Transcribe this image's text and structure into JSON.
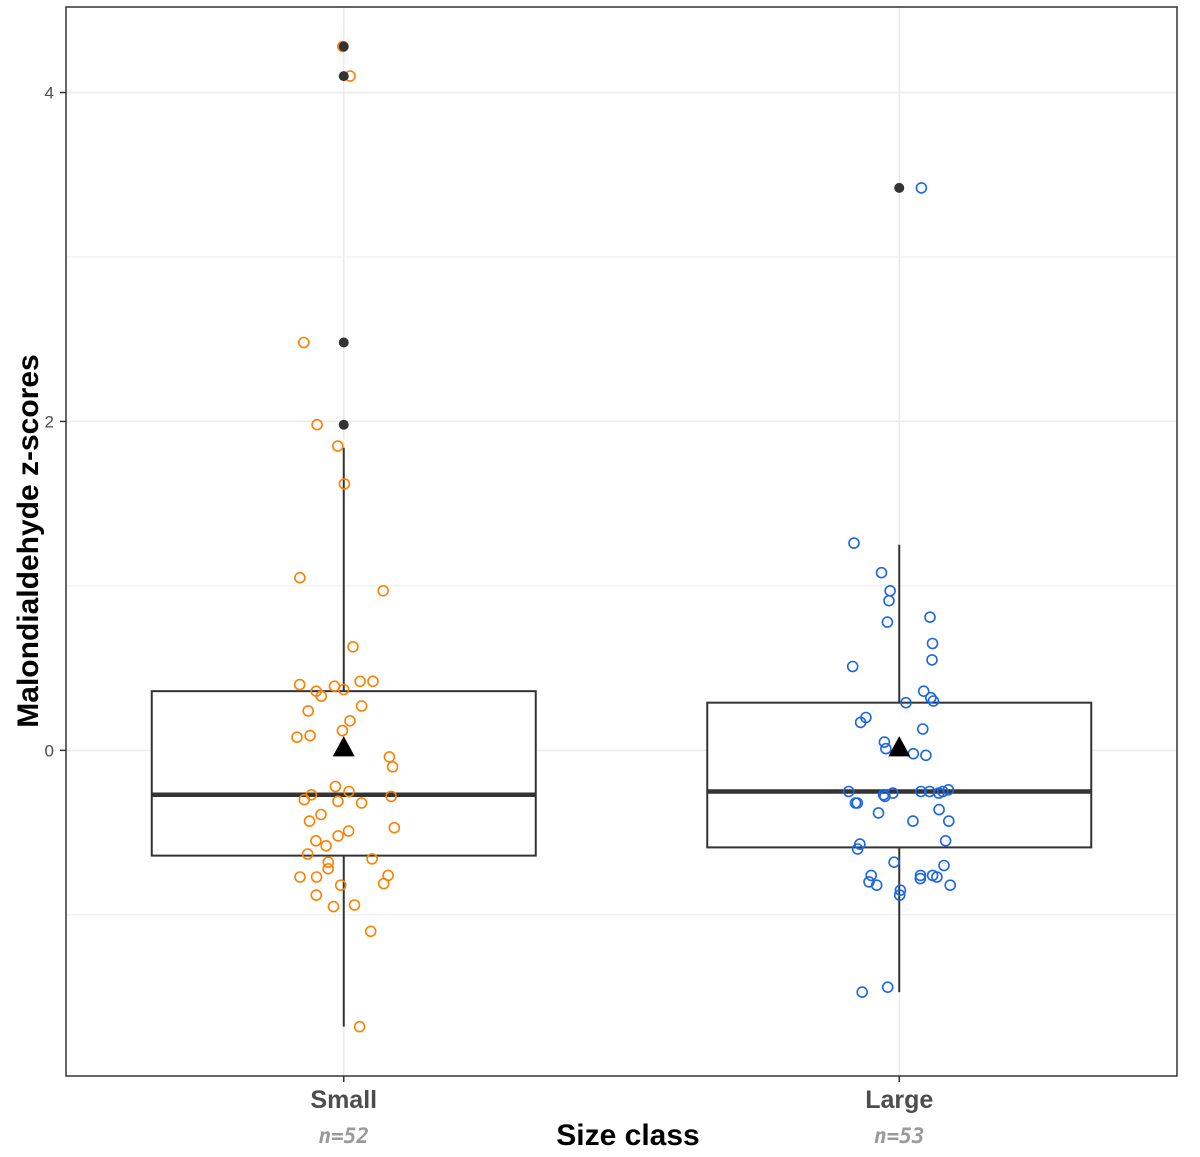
{
  "chart_data": {
    "type": "box",
    "xlabel": "Size class",
    "ylabel": "Malondialdehyde z-scores",
    "ylim": [
      -1.98,
      4.52
    ],
    "yticks": [
      0,
      2,
      4
    ],
    "grid": true,
    "categories": [
      "Small",
      "Large"
    ],
    "category_notes": [
      "n=52",
      "n=53"
    ],
    "colors": {
      "Small": "#ff7f00",
      "Large": "#1a66e6",
      "box": "#333333",
      "outlier": "#333333",
      "mean_marker": "#000000"
    },
    "boxes": [
      {
        "category": "Small",
        "lower_whisker": -1.68,
        "q1": -0.64,
        "median": -0.27,
        "q3": 0.36,
        "upper_whisker": 1.84,
        "mean": 0.02,
        "outliers": [
          4.28,
          4.1,
          2.48,
          1.98
        ]
      },
      {
        "category": "Large",
        "lower_whisker": -1.47,
        "q1": -0.59,
        "median": -0.25,
        "q3": 0.29,
        "upper_whisker": 1.25,
        "mean": 0.02,
        "outliers": [
          3.42
        ]
      }
    ],
    "points": [
      {
        "category": "Small",
        "values": [
          4.28,
          4.1,
          2.48,
          1.98,
          1.85,
          1.62,
          1.05,
          0.97,
          0.63,
          0.39,
          0.33,
          0.42,
          0.42,
          0.4,
          0.37,
          0.36,
          0.27,
          0.24,
          0.18,
          0.12,
          0.09,
          0.08,
          -0.04,
          -0.1,
          -0.3,
          -0.31,
          -0.28,
          -0.27,
          -0.22,
          -0.25,
          -0.32,
          -0.39,
          -0.43,
          -0.47,
          -0.52,
          -0.55,
          -0.49,
          -0.58,
          -0.63,
          -0.66,
          -0.68,
          -0.72,
          -0.77,
          -0.76,
          -0.77,
          -0.81,
          -0.82,
          -0.88,
          -0.94,
          -0.95,
          -1.1,
          -1.68
        ]
      },
      {
        "category": "Large",
        "values": [
          3.42,
          1.26,
          1.08,
          0.97,
          0.91,
          0.81,
          0.78,
          0.65,
          0.55,
          0.51,
          0.36,
          0.32,
          0.3,
          0.29,
          0.2,
          0.17,
          0.13,
          0.05,
          0.01,
          -0.02,
          -0.03,
          -0.24,
          -0.25,
          -0.25,
          -0.27,
          -0.28,
          -0.26,
          -0.25,
          -0.25,
          -0.26,
          -0.32,
          -0.32,
          -0.36,
          -0.38,
          -0.43,
          -0.43,
          -0.55,
          -0.57,
          -0.6,
          -0.68,
          -0.7,
          -0.76,
          -0.76,
          -0.76,
          -0.77,
          -0.78,
          -0.8,
          -0.82,
          -0.82,
          -0.85,
          -0.88,
          -1.44,
          -1.47
        ]
      }
    ]
  }
}
